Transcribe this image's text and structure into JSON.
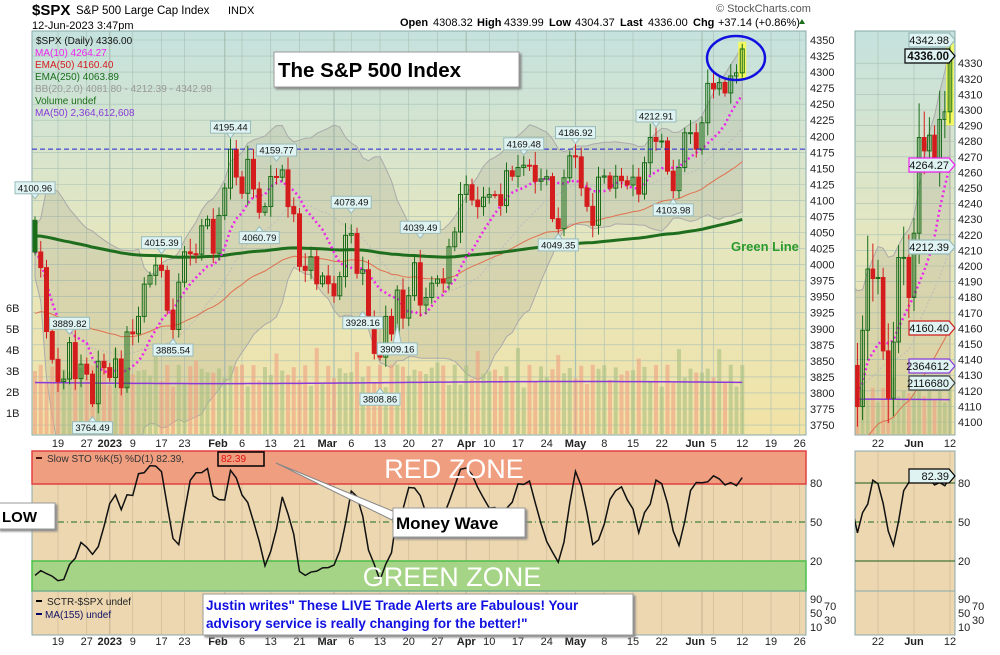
{
  "header": {
    "symbol": "$SPX",
    "name": "S&P 500 Large Cap Index",
    "exchange": "INDX",
    "datetime": "12-Jun-2023 3:47pm",
    "copyright": "© StockCharts.com",
    "open_label": "Open",
    "open": "4308.32",
    "high_label": "High",
    "high": "4339.99",
    "low_label": "Low",
    "low": "4304.37",
    "last_label": "Last",
    "last": "4336.00",
    "chg_label": "Chg",
    "chg": "+37.14 (+0.86%)",
    "chg_icon": "up-triangle-icon"
  },
  "legend": {
    "price": "$SPX (Daily) 4336.00",
    "ma10": "MA(10) 4264.27",
    "ema50": "EMA(50) 4160.40",
    "ema250": "EMA(250) 4063.89",
    "bb": "BB(20,2.0) 4081.80 - 4212.39 - 4342.98",
    "volume": "Volume undef",
    "vol_ma50": "MA(50) 2,364,612,608"
  },
  "colors": {
    "up": "#1a6e1a",
    "down": "#d41c1c",
    "ma10": "#ee22ee",
    "ema50": "#e07050",
    "ema250": "#1e6e1e",
    "vol_ma": "#8a3ad8",
    "red_zone": "#ef9e80",
    "green_zone": "#a6d486",
    "annotation_blue": "#1010e0"
  },
  "annotations": {
    "title_box": "The S&P 500 Index",
    "green_line": "Green Line",
    "red_zone": "RED ZONE",
    "green_zone": "GREEN ZONE",
    "low_box": "LOW",
    "money_wave": "Money Wave",
    "testimonial_line1": "Justin writes\" These LIVE Trade Alerts are Fabulous! Your",
    "testimonial_line2": "advisory service is really changing for the better!\""
  },
  "stoch": {
    "legend_prefix": "Slow STO %K(5) %D(1) 82.39,",
    "legend_value": "82.39",
    "last_value": "82.39",
    "levels": [
      "80",
      "50",
      "20"
    ]
  },
  "sctr": {
    "legend": "SCTR-$SPX undef",
    "ma_legend": "MA(155) undef",
    "levels": [
      "90",
      "70",
      "50",
      "30",
      "10"
    ]
  },
  "right_labels": {
    "bb_upper": "4342.98",
    "last": "4336.00",
    "ma10": "4264.27",
    "bb_mid": "4212.39",
    "ema50": "4160.40",
    "vol_ma": "2364612",
    "volume": "2116680",
    "stoch": "82.39"
  },
  "chart_data": {
    "type": "candlestick",
    "title": "$SPX (Daily)",
    "ylim": [
      3740,
      4360
    ],
    "y_ticks": [
      3750,
      3775,
      3800,
      3825,
      3850,
      3875,
      3900,
      3925,
      3950,
      3975,
      4000,
      4025,
      4050,
      4075,
      4100,
      4125,
      4150,
      4175,
      4200,
      4225,
      4250,
      4275,
      4300,
      4325,
      4350
    ],
    "volume_ticks": [
      "1B",
      "2B",
      "3B",
      "4B",
      "5B",
      "6B"
    ],
    "zoom_y_ticks": [
      4100,
      4110,
      4120,
      4130,
      4140,
      4150,
      4160,
      4170,
      4180,
      4190,
      4200,
      4210,
      4220,
      4230,
      4240,
      4250,
      4260,
      4270,
      4280,
      4290,
      4300,
      4310,
      4320,
      4330
    ],
    "resistance_level": 4180,
    "x_ticks": [
      {
        "label": "19",
        "date": "2022-12-19"
      },
      {
        "label": "27",
        "date": "2022-12-27"
      },
      {
        "label": "2023",
        "date": "2023-01-03",
        "bold": true
      },
      {
        "label": "9",
        "date": "2023-01-09"
      },
      {
        "label": "17",
        "date": "2023-01-17"
      },
      {
        "label": "23",
        "date": "2023-01-23"
      },
      {
        "label": "Feb",
        "date": "2023-02-01",
        "bold": true
      },
      {
        "label": "6",
        "date": "2023-02-06"
      },
      {
        "label": "13",
        "date": "2023-02-13"
      },
      {
        "label": "21",
        "date": "2023-02-21"
      },
      {
        "label": "Mar",
        "date": "2023-03-01",
        "bold": true
      },
      {
        "label": "6",
        "date": "2023-03-06"
      },
      {
        "label": "13",
        "date": "2023-03-13"
      },
      {
        "label": "20",
        "date": "2023-03-20"
      },
      {
        "label": "27",
        "date": "2023-03-27"
      },
      {
        "label": "Apr",
        "date": "2023-04-03",
        "bold": true
      },
      {
        "label": "10",
        "date": "2023-04-10"
      },
      {
        "label": "17",
        "date": "2023-04-17"
      },
      {
        "label": "24",
        "date": "2023-04-24"
      },
      {
        "label": "May",
        "date": "2023-05-01",
        "bold": true
      },
      {
        "label": "8",
        "date": "2023-05-08"
      },
      {
        "label": "15",
        "date": "2023-05-15"
      },
      {
        "label": "22",
        "date": "2023-05-22"
      },
      {
        "label": "Jun",
        "date": "2023-06-01",
        "bold": true
      },
      {
        "label": "5",
        "date": "2023-06-05"
      },
      {
        "label": "12",
        "date": "2023-06-12"
      },
      {
        "label": "19",
        "date": "2023-06-19",
        "future": 5
      },
      {
        "label": "26",
        "date": "2023-06-26",
        "future": 10
      }
    ],
    "zoom_x_ticks": [
      {
        "label": "22",
        "date": "2023-05-22"
      },
      {
        "label": "Jun",
        "date": "2023-06-01",
        "bold": true
      },
      {
        "label": "12",
        "date": "2023-06-12"
      }
    ],
    "dates": [
      "2022-12-13",
      "2022-12-14",
      "2022-12-15",
      "2022-12-16",
      "2022-12-19",
      "2022-12-20",
      "2022-12-21",
      "2022-12-22",
      "2022-12-23",
      "2022-12-27",
      "2022-12-28",
      "2022-12-29",
      "2022-12-30",
      "2023-01-03",
      "2023-01-04",
      "2023-01-05",
      "2023-01-06",
      "2023-01-09",
      "2023-01-10",
      "2023-01-11",
      "2023-01-12",
      "2023-01-13",
      "2023-01-17",
      "2023-01-18",
      "2023-01-19",
      "2023-01-20",
      "2023-01-23",
      "2023-01-24",
      "2023-01-25",
      "2023-01-26",
      "2023-01-27",
      "2023-01-30",
      "2023-01-31",
      "2023-02-01",
      "2023-02-02",
      "2023-02-03",
      "2023-02-06",
      "2023-02-07",
      "2023-02-08",
      "2023-02-09",
      "2023-02-10",
      "2023-02-13",
      "2023-02-14",
      "2023-02-15",
      "2023-02-16",
      "2023-02-17",
      "2023-02-21",
      "2023-02-22",
      "2023-02-23",
      "2023-02-24",
      "2023-02-27",
      "2023-02-28",
      "2023-03-01",
      "2023-03-02",
      "2023-03-03",
      "2023-03-06",
      "2023-03-07",
      "2023-03-08",
      "2023-03-09",
      "2023-03-10",
      "2023-03-13",
      "2023-03-14",
      "2023-03-15",
      "2023-03-16",
      "2023-03-17",
      "2023-03-20",
      "2023-03-21",
      "2023-03-22",
      "2023-03-23",
      "2023-03-24",
      "2023-03-27",
      "2023-03-28",
      "2023-03-29",
      "2023-03-30",
      "2023-03-31",
      "2023-04-03",
      "2023-04-04",
      "2023-04-05",
      "2023-04-06",
      "2023-04-10",
      "2023-04-11",
      "2023-04-12",
      "2023-04-13",
      "2023-04-14",
      "2023-04-17",
      "2023-04-18",
      "2023-04-19",
      "2023-04-20",
      "2023-04-21",
      "2023-04-24",
      "2023-04-25",
      "2023-04-26",
      "2023-04-27",
      "2023-04-28",
      "2023-05-01",
      "2023-05-02",
      "2023-05-03",
      "2023-05-04",
      "2023-05-05",
      "2023-05-08",
      "2023-05-09",
      "2023-05-10",
      "2023-05-11",
      "2023-05-12",
      "2023-05-15",
      "2023-05-16",
      "2023-05-17",
      "2023-05-18",
      "2023-05-19",
      "2023-05-22",
      "2023-05-23",
      "2023-05-24",
      "2023-05-25",
      "2023-05-26",
      "2023-05-30",
      "2023-05-31",
      "2023-06-01",
      "2023-06-02",
      "2023-06-05",
      "2023-06-06",
      "2023-06-07",
      "2023-06-08",
      "2023-06-09",
      "2023-06-12"
    ],
    "close": [
      4019.65,
      3995.32,
      3895.75,
      3852.36,
      3817.66,
      3821.62,
      3878.44,
      3822.39,
      3844.82,
      3829.25,
      3783.22,
      3849.28,
      3839.5,
      3824.14,
      3852.97,
      3808.1,
      3895.08,
      3892.09,
      3919.25,
      3969.61,
      3983.17,
      3999.09,
      3990.97,
      3928.86,
      3898.85,
      3972.61,
      4019.81,
      4016.95,
      4016.22,
      4060.43,
      4070.56,
      4017.77,
      4076.6,
      4119.21,
      4179.76,
      4136.48,
      4111.08,
      4164.0,
      4117.86,
      4081.5,
      4090.46,
      4137.29,
      4136.13,
      4147.6,
      4090.41,
      4079.09,
      3997.34,
      3991.05,
      4012.32,
      3970.04,
      3982.24,
      3970.15,
      3951.39,
      3981.35,
      4045.64,
      4048.42,
      3986.37,
      3992.01,
      3918.32,
      3861.59,
      3855.76,
      3919.29,
      3891.93,
      3960.28,
      3916.64,
      3951.57,
      4002.87,
      3936.97,
      3948.72,
      3970.99,
      3977.53,
      3971.27,
      4027.81,
      4050.83,
      4109.31,
      4124.51,
      4100.6,
      4090.38,
      4105.02,
      4109.11,
      4108.94,
      4091.95,
      4146.22,
      4137.64,
      4151.32,
      4154.87,
      4154.52,
      4129.79,
      4133.52,
      4137.04,
      4071.63,
      4055.99,
      4135.35,
      4169.48,
      4167.87,
      4119.58,
      4090.75,
      4061.22,
      4136.25,
      4138.12,
      4119.17,
      4137.64,
      4130.62,
      4124.08,
      4136.28,
      4109.9,
      4158.77,
      4198.05,
      4191.98,
      4192.63,
      4145.58,
      4115.24,
      4151.28,
      4205.45,
      4205.52,
      4179.83,
      4221.02,
      4282.37,
      4273.79,
      4283.85,
      4267.52,
      4293.93,
      4298.86,
      4336.0
    ],
    "callouts": [
      {
        "text": "4100.96",
        "date": "2022-12-13",
        "value": 4100.96,
        "side": "above"
      },
      {
        "text": "3889.82",
        "date": "2022-12-21",
        "value": 3889.82,
        "side": "above"
      },
      {
        "text": "3764.49",
        "date": "2022-12-28",
        "value": 3764.49,
        "side": "below"
      },
      {
        "text": "4015.39",
        "date": "2023-01-17",
        "value": 4015.39,
        "side": "above"
      },
      {
        "text": "3885.54",
        "date": "2023-01-19",
        "value": 3885.54,
        "side": "below"
      },
      {
        "text": "4195.44",
        "date": "2023-02-02",
        "value": 4195.44,
        "side": "above"
      },
      {
        "text": "4060.79",
        "date": "2023-02-09",
        "value": 4060.79,
        "side": "below"
      },
      {
        "text": "4159.77",
        "date": "2023-02-14",
        "value": 4159.77,
        "side": "above"
      },
      {
        "text": "4078.49",
        "date": "2023-03-06",
        "value": 4078.49,
        "side": "above"
      },
      {
        "text": "3928.16",
        "date": "2023-03-08",
        "value": 3928.16,
        "side": "below"
      },
      {
        "text": "3808.86",
        "date": "2023-03-13",
        "value": 3808.86,
        "side": "below"
      },
      {
        "text": "3909.16",
        "date": "2023-03-16",
        "value": 3909.16,
        "side": "below"
      },
      {
        "text": "4039.49",
        "date": "2023-03-22",
        "value": 4039.49,
        "side": "above"
      },
      {
        "text": "4169.48",
        "date": "2023-04-18",
        "value": 4169.48,
        "side": "above"
      },
      {
        "text": "4049.35",
        "date": "2023-04-26",
        "value": 4049.35,
        "side": "below"
      },
      {
        "text": "4186.92",
        "date": "2023-05-01",
        "value": 4186.92,
        "side": "above"
      },
      {
        "text": "4212.91",
        "date": "2023-05-19",
        "value": 4212.91,
        "side": "above"
      },
      {
        "text": "4103.98",
        "date": "2023-05-24",
        "value": 4103.98,
        "side": "below"
      }
    ]
  }
}
